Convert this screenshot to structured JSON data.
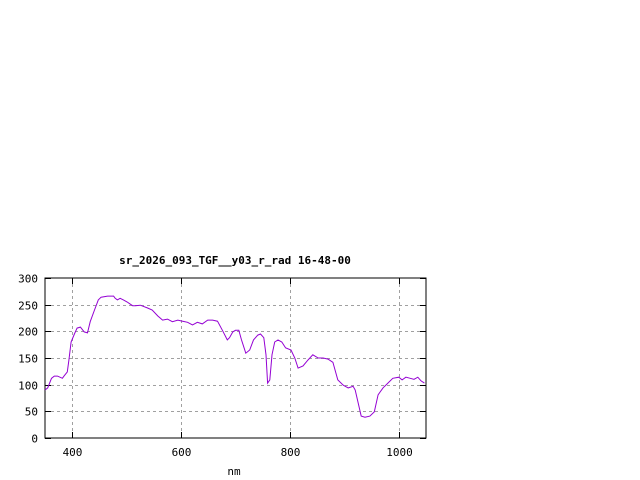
{
  "chart_data": {
    "type": "line",
    "title": "sr_2026_093_TGF__y03_r_rad 16-48-00",
    "xlabel": "nm",
    "ylabel": "",
    "xlim": [
      350,
      1050
    ],
    "ylim": [
      0,
      300
    ],
    "xticks": [
      400,
      600,
      800,
      1000
    ],
    "yticks": [
      0,
      50,
      100,
      150,
      200,
      250,
      300
    ],
    "grid": true,
    "line_color": "#9400d3",
    "series": [
      {
        "x": [
          350,
          355,
          362,
          367,
          373,
          382,
          385,
          391,
          394,
          398,
          404,
          409,
          415,
          422,
          428,
          433,
          441,
          448,
          453,
          465,
          476,
          479,
          483,
          488,
          494,
          501,
          511,
          516,
          525,
          538,
          547,
          557,
          566,
          575,
          584,
          594,
          603,
          612,
          621,
          630,
          639,
          649,
          658,
          667,
          676,
          685,
          689,
          695,
          700,
          706,
          711,
          719,
          726,
          733,
          741,
          746,
          752,
          756,
          759,
          763,
          767,
          772,
          778,
          785,
          792,
          802,
          809,
          815,
          824,
          833,
          842,
          852,
          861,
          870,
          879,
          888,
          898,
          907,
          916,
          920,
          931,
          938,
          947,
          955,
          962,
          971,
          980,
          989,
          1000,
          1006,
          1013,
          1021,
          1028,
          1035,
          1041,
          1047
        ],
        "y": [
          90,
          94,
          112,
          116,
          116,
          112,
          116,
          124,
          146,
          180,
          195,
          206,
          208,
          199,
          197,
          218,
          240,
          259,
          264,
          266,
          266,
          262,
          259,
          262,
          259,
          255,
          248,
          248,
          249,
          244,
          240,
          229,
          221,
          223,
          218,
          221,
          219,
          217,
          212,
          217,
          214,
          221,
          221,
          219,
          202,
          184,
          188,
          199,
          202,
          202,
          184,
          159,
          165,
          184,
          193,
          195,
          188,
          156,
          103,
          109,
          156,
          180,
          184,
          180,
          169,
          165,
          150,
          131,
          135,
          146,
          156,
          150,
          150,
          148,
          142,
          109,
          99,
          94,
          97,
          90,
          41,
          39,
          41,
          49,
          81,
          94,
          103,
          112,
          114,
          109,
          114,
          112,
          110,
          114,
          107,
          103
        ]
      }
    ]
  }
}
